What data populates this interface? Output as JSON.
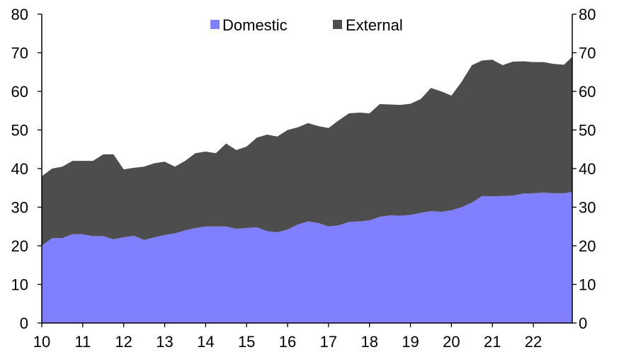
{
  "chart_data": {
    "type": "area",
    "stacked": true,
    "x_tick_labels": [
      "10",
      "11",
      "12",
      "13",
      "14",
      "15",
      "16",
      "17",
      "18",
      "19",
      "20",
      "21",
      "22"
    ],
    "x_range": [
      2010.0,
      2022.95
    ],
    "y_range": [
      0,
      80
    ],
    "y_ticks": [
      0,
      10,
      20,
      30,
      40,
      50,
      60,
      70,
      80
    ],
    "y_axis_left": true,
    "y_axis_right": true,
    "grid": false,
    "legend_position": "top-center",
    "series": [
      {
        "name": "Domestic",
        "color": "#8080ff",
        "points": [
          [
            2010.0,
            20
          ],
          [
            2010.25,
            22
          ],
          [
            2010.5,
            22
          ],
          [
            2010.75,
            23
          ],
          [
            2011.0,
            23
          ],
          [
            2011.25,
            22.5
          ],
          [
            2011.5,
            22.5
          ],
          [
            2011.75,
            21.7
          ],
          [
            2012.0,
            22.2
          ],
          [
            2012.25,
            22.6
          ],
          [
            2012.5,
            21.5
          ],
          [
            2012.75,
            22.2
          ],
          [
            2013.0,
            22.8
          ],
          [
            2013.25,
            23.2
          ],
          [
            2013.5,
            24
          ],
          [
            2013.75,
            24.6
          ],
          [
            2014.0,
            25
          ],
          [
            2014.25,
            25
          ],
          [
            2014.5,
            25
          ],
          [
            2014.75,
            24.4
          ],
          [
            2015.0,
            24.6
          ],
          [
            2015.25,
            24.8
          ],
          [
            2015.5,
            23.8
          ],
          [
            2015.75,
            23.5
          ],
          [
            2016.0,
            24.2
          ],
          [
            2016.25,
            25.5
          ],
          [
            2016.5,
            26.3
          ],
          [
            2016.75,
            25.9
          ],
          [
            2017.0,
            25
          ],
          [
            2017.25,
            25.3
          ],
          [
            2017.5,
            26.2
          ],
          [
            2017.75,
            26.3
          ],
          [
            2018.0,
            26.6
          ],
          [
            2018.25,
            27.5
          ],
          [
            2018.5,
            27.9
          ],
          [
            2018.75,
            27.8
          ],
          [
            2019.0,
            28
          ],
          [
            2019.25,
            28.5
          ],
          [
            2019.5,
            29
          ],
          [
            2019.75,
            28.8
          ],
          [
            2020.0,
            29.2
          ],
          [
            2020.25,
            30
          ],
          [
            2020.5,
            31.2
          ],
          [
            2020.75,
            32.9
          ],
          [
            2021.0,
            32.8
          ],
          [
            2021.25,
            32.9
          ],
          [
            2021.5,
            33
          ],
          [
            2021.75,
            33.5
          ],
          [
            2022.0,
            33.6
          ],
          [
            2022.25,
            33.8
          ],
          [
            2022.5,
            33.6
          ],
          [
            2022.75,
            33.6
          ],
          [
            2022.95,
            34
          ]
        ]
      },
      {
        "name": "External",
        "color": "#4d4d4d",
        "points": [
          [
            2010.0,
            18
          ],
          [
            2010.25,
            18
          ],
          [
            2010.5,
            18.5
          ],
          [
            2010.75,
            19
          ],
          [
            2011.0,
            19
          ],
          [
            2011.25,
            19.5
          ],
          [
            2011.5,
            21.2
          ],
          [
            2011.75,
            22
          ],
          [
            2012.0,
            17.6
          ],
          [
            2012.25,
            17.6
          ],
          [
            2012.5,
            19
          ],
          [
            2012.75,
            19.2
          ],
          [
            2013.0,
            19
          ],
          [
            2013.25,
            17.3
          ],
          [
            2013.5,
            18
          ],
          [
            2013.75,
            19.4
          ],
          [
            2014.0,
            19.4
          ],
          [
            2014.25,
            19
          ],
          [
            2014.5,
            21.5
          ],
          [
            2014.75,
            20.4
          ],
          [
            2015.0,
            21.1
          ],
          [
            2015.25,
            23.2
          ],
          [
            2015.5,
            25
          ],
          [
            2015.75,
            24.8
          ],
          [
            2016.0,
            25.8
          ],
          [
            2016.25,
            25.2
          ],
          [
            2016.5,
            25.5
          ],
          [
            2016.75,
            25.1
          ],
          [
            2017.0,
            25.5
          ],
          [
            2017.25,
            27.2
          ],
          [
            2017.5,
            28.1
          ],
          [
            2017.75,
            28.2
          ],
          [
            2018.0,
            27.7
          ],
          [
            2018.25,
            29.2
          ],
          [
            2018.5,
            28.7
          ],
          [
            2018.75,
            28.7
          ],
          [
            2019.0,
            28.8
          ],
          [
            2019.25,
            29.5
          ],
          [
            2019.5,
            31.9
          ],
          [
            2019.75,
            31.2
          ],
          [
            2020.0,
            29.7
          ],
          [
            2020.25,
            32.5
          ],
          [
            2020.5,
            35.6
          ],
          [
            2020.75,
            35.1
          ],
          [
            2021.0,
            35.4
          ],
          [
            2021.25,
            33.9
          ],
          [
            2021.5,
            34.7
          ],
          [
            2021.75,
            34.3
          ],
          [
            2022.0,
            34
          ],
          [
            2022.25,
            33.8
          ],
          [
            2022.5,
            33.5
          ],
          [
            2022.75,
            33.3
          ],
          [
            2022.95,
            35
          ]
        ]
      }
    ]
  }
}
